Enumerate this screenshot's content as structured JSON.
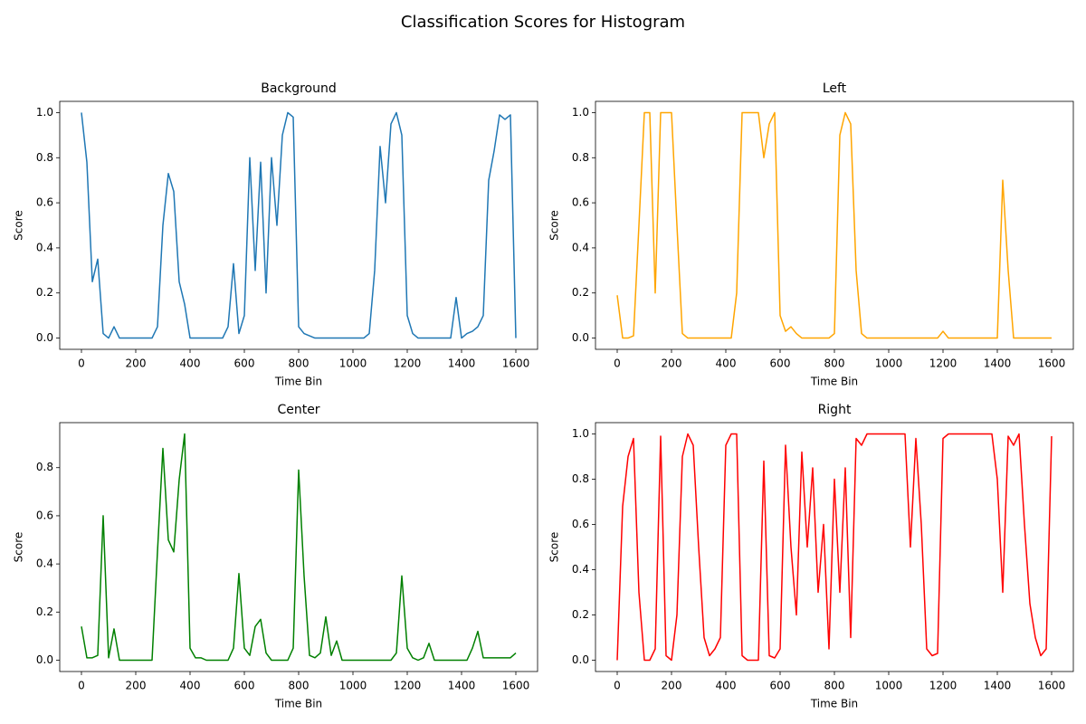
{
  "title": "Classification Scores for Histogram",
  "chart_data": [
    {
      "type": "line",
      "title": "Background",
      "x_label": "Time Bin",
      "y_label": "Score",
      "color": "#1f77b4",
      "x": [
        0,
        20,
        40,
        60,
        80,
        100,
        120,
        140,
        160,
        180,
        200,
        220,
        240,
        260,
        280,
        300,
        320,
        340,
        360,
        380,
        400,
        420,
        440,
        460,
        480,
        500,
        520,
        540,
        560,
        580,
        600,
        620,
        640,
        660,
        680,
        700,
        720,
        740,
        760,
        780,
        800,
        820,
        840,
        860,
        880,
        900,
        920,
        940,
        960,
        980,
        1000,
        1020,
        1040,
        1060,
        1080,
        1100,
        1120,
        1140,
        1160,
        1180,
        1200,
        1220,
        1240,
        1260,
        1280,
        1300,
        1320,
        1340,
        1360,
        1380,
        1400,
        1420,
        1440,
        1460,
        1480,
        1500,
        1520,
        1540,
        1560,
        1580,
        1600
      ],
      "values": [
        1.0,
        0.78,
        0.25,
        0.35,
        0.02,
        0,
        0.05,
        0,
        0,
        0,
        0,
        0,
        0,
        0,
        0.05,
        0.5,
        0.73,
        0.65,
        0.25,
        0.15,
        0,
        0,
        0,
        0,
        0,
        0,
        0,
        0.05,
        0.33,
        0.02,
        0.1,
        0.8,
        0.3,
        0.78,
        0.2,
        0.8,
        0.5,
        0.9,
        1.0,
        0.98,
        0.05,
        0.02,
        0.01,
        0,
        0,
        0,
        0,
        0,
        0,
        0,
        0,
        0,
        0,
        0.02,
        0.3,
        0.85,
        0.6,
        0.95,
        1.0,
        0.9,
        0.1,
        0.02,
        0,
        0,
        0,
        0,
        0,
        0,
        0,
        0.18,
        0,
        0.02,
        0.03,
        0.05,
        0.1,
        0.7,
        0.83,
        0.99,
        0.97,
        0.99,
        0.0
      ],
      "xlim": [
        -80,
        1680
      ],
      "xticks": [
        0,
        200,
        400,
        600,
        800,
        1000,
        1200,
        1400,
        1600
      ],
      "ylim": [
        -0.05,
        1.05
      ],
      "yticks": [
        {
          "value": 0,
          "label": "0.0"
        },
        {
          "value": 0.2,
          "label": "0.2"
        },
        {
          "value": 0.4,
          "label": "0.4"
        },
        {
          "value": 0.6,
          "label": "0.6"
        },
        {
          "value": 0.8,
          "label": "0.8"
        },
        {
          "value": 1,
          "label": "1.0"
        }
      ]
    },
    {
      "type": "line",
      "title": "Left",
      "x_label": "Time Bin",
      "y_label": "Score",
      "color": "#ffa500",
      "x": [
        0,
        20,
        40,
        60,
        80,
        100,
        120,
        140,
        160,
        180,
        200,
        220,
        240,
        260,
        280,
        300,
        320,
        340,
        360,
        380,
        400,
        420,
        440,
        460,
        480,
        500,
        520,
        540,
        560,
        580,
        600,
        620,
        640,
        660,
        680,
        700,
        720,
        740,
        760,
        780,
        800,
        820,
        840,
        860,
        880,
        900,
        920,
        940,
        960,
        980,
        1000,
        1020,
        1040,
        1060,
        1080,
        1100,
        1120,
        1140,
        1160,
        1180,
        1200,
        1220,
        1240,
        1260,
        1280,
        1300,
        1320,
        1340,
        1360,
        1380,
        1400,
        1420,
        1440,
        1460,
        1480,
        1500,
        1520,
        1540,
        1560,
        1580,
        1600
      ],
      "values": [
        0.19,
        0,
        0,
        0.01,
        0.5,
        1.0,
        1.0,
        0.2,
        1.0,
        1.0,
        1.0,
        0.5,
        0.02,
        0,
        0,
        0,
        0,
        0,
        0,
        0,
        0,
        0,
        0.2,
        1.0,
        1.0,
        1.0,
        1.0,
        0.8,
        0.95,
        1.0,
        0.1,
        0.03,
        0.05,
        0.02,
        0,
        0,
        0,
        0,
        0,
        0,
        0.02,
        0.9,
        1.0,
        0.95,
        0.3,
        0.02,
        0,
        0,
        0,
        0,
        0,
        0,
        0,
        0,
        0,
        0,
        0,
        0,
        0,
        0,
        0.03,
        0,
        0,
        0,
        0,
        0,
        0,
        0,
        0,
        0,
        0,
        0.7,
        0.3,
        0,
        0,
        0,
        0,
        0,
        0,
        0,
        0
      ],
      "xlim": [
        -80,
        1680
      ],
      "xticks": [
        0,
        200,
        400,
        600,
        800,
        1000,
        1200,
        1400,
        1600
      ],
      "ylim": [
        -0.05,
        1.05
      ],
      "yticks": [
        {
          "value": 0,
          "label": "0.0"
        },
        {
          "value": 0.2,
          "label": "0.2"
        },
        {
          "value": 0.4,
          "label": "0.4"
        },
        {
          "value": 0.6,
          "label": "0.6"
        },
        {
          "value": 0.8,
          "label": "0.8"
        },
        {
          "value": 1,
          "label": "1.0"
        }
      ]
    },
    {
      "type": "line",
      "title": "Center",
      "x_label": "Time Bin",
      "y_label": "Score",
      "color": "#008000",
      "x": [
        0,
        20,
        40,
        60,
        80,
        100,
        120,
        140,
        160,
        180,
        200,
        220,
        240,
        260,
        280,
        300,
        320,
        340,
        360,
        380,
        400,
        420,
        440,
        460,
        480,
        500,
        520,
        540,
        560,
        580,
        600,
        620,
        640,
        660,
        680,
        700,
        720,
        740,
        760,
        780,
        800,
        820,
        840,
        860,
        880,
        900,
        920,
        940,
        960,
        980,
        1000,
        1020,
        1040,
        1060,
        1080,
        1100,
        1120,
        1140,
        1160,
        1180,
        1200,
        1220,
        1240,
        1260,
        1280,
        1300,
        1320,
        1340,
        1360,
        1380,
        1400,
        1420,
        1440,
        1460,
        1480,
        1500,
        1520,
        1540,
        1560,
        1580,
        1600
      ],
      "values": [
        0.14,
        0.01,
        0.01,
        0.02,
        0.6,
        0.01,
        0.13,
        0,
        0,
        0,
        0,
        0,
        0,
        0,
        0.45,
        0.88,
        0.5,
        0.45,
        0.75,
        0.94,
        0.05,
        0.01,
        0.01,
        0,
        0,
        0,
        0,
        0,
        0.05,
        0.36,
        0.05,
        0.02,
        0.14,
        0.17,
        0.03,
        0,
        0,
        0,
        0,
        0.05,
        0.79,
        0.35,
        0.02,
        0.01,
        0.03,
        0.18,
        0.02,
        0.08,
        0,
        0,
        0,
        0,
        0,
        0,
        0,
        0,
        0,
        0,
        0.03,
        0.35,
        0.05,
        0.01,
        0,
        0.01,
        0.07,
        0,
        0,
        0,
        0,
        0,
        0,
        0,
        0.05,
        0.12,
        0.01,
        0.01,
        0.01,
        0.01,
        0.01,
        0.01,
        0.03
      ],
      "xlim": [
        -80,
        1680
      ],
      "xticks": [
        0,
        200,
        400,
        600,
        800,
        1000,
        1200,
        1400,
        1600
      ],
      "ylim": [
        -0.047,
        0.987
      ],
      "yticks": [
        {
          "value": 0,
          "label": "0.0"
        },
        {
          "value": 0.2,
          "label": "0.2"
        },
        {
          "value": 0.4,
          "label": "0.4"
        },
        {
          "value": 0.6,
          "label": "0.6"
        },
        {
          "value": 0.8,
          "label": "0.8"
        }
      ]
    },
    {
      "type": "line",
      "title": "Right",
      "x_label": "Time Bin",
      "y_label": "Score",
      "color": "#ff0000",
      "x": [
        0,
        20,
        40,
        60,
        80,
        100,
        120,
        140,
        160,
        180,
        200,
        220,
        240,
        260,
        280,
        300,
        320,
        340,
        360,
        380,
        400,
        420,
        440,
        460,
        480,
        500,
        520,
        540,
        560,
        580,
        600,
        620,
        640,
        660,
        680,
        700,
        720,
        740,
        760,
        780,
        800,
        820,
        840,
        860,
        880,
        900,
        920,
        940,
        960,
        980,
        1000,
        1020,
        1040,
        1060,
        1080,
        1100,
        1120,
        1140,
        1160,
        1180,
        1200,
        1220,
        1240,
        1260,
        1280,
        1300,
        1320,
        1340,
        1360,
        1380,
        1400,
        1420,
        1440,
        1460,
        1480,
        1500,
        1520,
        1540,
        1560,
        1580,
        1600
      ],
      "values": [
        0,
        0.68,
        0.9,
        0.98,
        0.3,
        0,
        0,
        0.05,
        0.99,
        0.02,
        0,
        0.2,
        0.9,
        1.0,
        0.95,
        0.5,
        0.1,
        0.02,
        0.05,
        0.1,
        0.95,
        1.0,
        1.0,
        0.02,
        0,
        0,
        0,
        0.88,
        0.02,
        0.01,
        0.05,
        0.95,
        0.5,
        0.2,
        0.92,
        0.5,
        0.85,
        0.3,
        0.6,
        0.05,
        0.8,
        0.3,
        0.85,
        0.1,
        0.98,
        0.95,
        1.0,
        1.0,
        1.0,
        1.0,
        1.0,
        1.0,
        1.0,
        1.0,
        0.5,
        0.98,
        0.6,
        0.05,
        0.02,
        0.03,
        0.98,
        1.0,
        1.0,
        1.0,
        1.0,
        1.0,
        1.0,
        1.0,
        1.0,
        1.0,
        0.8,
        0.3,
        0.99,
        0.95,
        1.0,
        0.6,
        0.25,
        0.1,
        0.02,
        0.05,
        0.99
      ],
      "xlim": [
        -80,
        1680
      ],
      "xticks": [
        0,
        200,
        400,
        600,
        800,
        1000,
        1200,
        1400,
        1600
      ],
      "ylim": [
        -0.05,
        1.05
      ],
      "yticks": [
        {
          "value": 0,
          "label": "0.0"
        },
        {
          "value": 0.2,
          "label": "0.2"
        },
        {
          "value": 0.4,
          "label": "0.4"
        },
        {
          "value": 0.6,
          "label": "0.6"
        },
        {
          "value": 0.8,
          "label": "0.8"
        },
        {
          "value": 1,
          "label": "1.0"
        }
      ]
    }
  ]
}
